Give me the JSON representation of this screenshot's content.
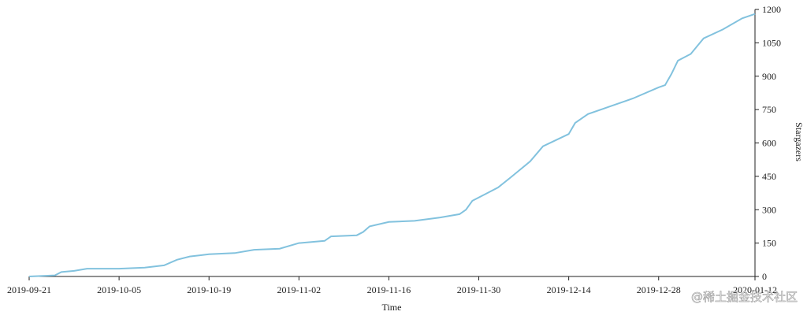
{
  "chart_data": {
    "type": "line",
    "x_label": "Time",
    "y_label": "Stargazers",
    "watermark": "@稀土掘金技术社区",
    "x": [
      "2019-09-21",
      "2019-09-25",
      "2019-09-26",
      "2019-09-28",
      "2019-09-30",
      "2019-10-05",
      "2019-10-09",
      "2019-10-12",
      "2019-10-14",
      "2019-10-16",
      "2019-10-19",
      "2019-10-23",
      "2019-10-26",
      "2019-10-30",
      "2019-11-02",
      "2019-11-06",
      "2019-11-07",
      "2019-11-11",
      "2019-11-12",
      "2019-11-13",
      "2019-11-16",
      "2019-11-20",
      "2019-11-24",
      "2019-11-27",
      "2019-11-28",
      "2019-11-29",
      "2019-12-01",
      "2019-12-03",
      "2019-12-05",
      "2019-12-08",
      "2019-12-10",
      "2019-12-14",
      "2019-12-15",
      "2019-12-17",
      "2019-12-20",
      "2019-12-24",
      "2019-12-28",
      "2019-12-29",
      "2019-12-30",
      "2019-12-31",
      "2020-01-02",
      "2020-01-04",
      "2020-01-07",
      "2020-01-10",
      "2020-01-12"
    ],
    "series": [
      {
        "name": "Stargazers",
        "color": "#82c2de",
        "values": [
          0,
          5,
          20,
          25,
          35,
          35,
          40,
          50,
          75,
          90,
          100,
          105,
          120,
          125,
          150,
          160,
          180,
          185,
          200,
          225,
          245,
          250,
          265,
          280,
          300,
          340,
          370,
          400,
          446,
          517,
          585,
          640,
          690,
          730,
          760,
          800,
          850,
          860,
          910,
          970,
          1000,
          1070,
          1110,
          1160,
          1180
        ]
      }
    ],
    "xlim": [
      "2019-09-21",
      "2020-01-12"
    ],
    "xticks": [
      "2019-09-21",
      "2019-10-05",
      "2019-10-19",
      "2019-11-02",
      "2019-11-16",
      "2019-11-30",
      "2019-12-14",
      "2019-12-28",
      "2020-01-12"
    ],
    "ylim": [
      0,
      1200
    ],
    "yticks": [
      0,
      150,
      300,
      450,
      600,
      750,
      900,
      1050,
      1200
    ],
    "y_axis_side": "right"
  }
}
